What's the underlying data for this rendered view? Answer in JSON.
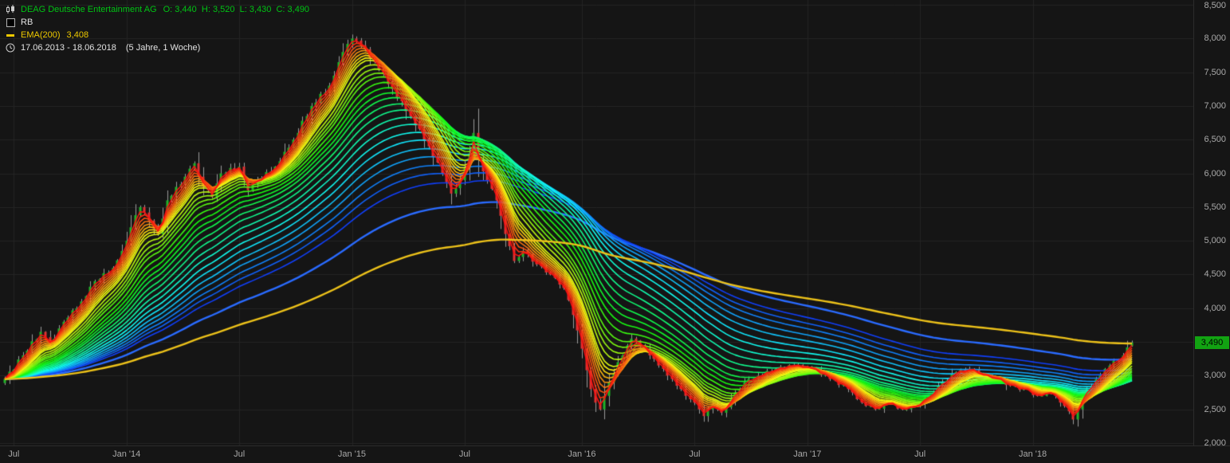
{
  "header": {
    "symbol_title": "DEAG Deutsche Entertainment AG",
    "ohlc_text": "O: 3,440  H: 3,520  L: 3,430  C: 3,490",
    "indicator_label": "RB",
    "ema_label": "EMA(200)",
    "ema_value": "3,408",
    "period_text": "17.06.2013 - 18.06.2018",
    "period_detail": "(5 Jahre, 1 Woche)"
  },
  "colors": {
    "background": "#151515",
    "grid": "#242424",
    "axis_text": "#a9a9a9",
    "title_green": "#00c414",
    "text_light": "#e2e2e2",
    "ema_yellow": "#eec900",
    "candle_up": "#21b32a",
    "candle_down": "#e03131",
    "wick": "#9a9a9a",
    "price_tag_bg": "#12a312",
    "price_tag_text": "#000000",
    "blue_line": "#2a6bff",
    "ema200_line": "#edc21a"
  },
  "chart_data": {
    "type": "candlestick",
    "title": "DEAG Deutsche Entertainment AG",
    "date_range": "17.06.2013 - 18.06.2018",
    "timeframe": "1 Woche",
    "current_price": 3490,
    "current_price_label": "3,490",
    "ema200_value": 3408,
    "y_range": [
      2000,
      8500
    ],
    "y_ticks": [
      {
        "value": 8500,
        "label": "8,500"
      },
      {
        "value": 8000,
        "label": "8,000"
      },
      {
        "value": 7500,
        "label": "7,500"
      },
      {
        "value": 7000,
        "label": "7,000"
      },
      {
        "value": 6500,
        "label": "6,500"
      },
      {
        "value": 6000,
        "label": "6,000"
      },
      {
        "value": 5500,
        "label": "5,500"
      },
      {
        "value": 5000,
        "label": "5,000"
      },
      {
        "value": 4500,
        "label": "4,500"
      },
      {
        "value": 4000,
        "label": "4,000"
      },
      {
        "value": 3500,
        "label": "3,500"
      },
      {
        "value": 3000,
        "label": "3,000"
      },
      {
        "value": 2500,
        "label": "2,500"
      },
      {
        "value": 2000,
        "label": "2,000"
      }
    ],
    "x_ticks": [
      {
        "label": "Jul",
        "week": 2
      },
      {
        "label": "Jan '14",
        "week": 27
      },
      {
        "label": "Jul",
        "week": 52
      },
      {
        "label": "Jan '15",
        "week": 77
      },
      {
        "label": "Jul",
        "week": 102
      },
      {
        "label": "Jan '16",
        "week": 128
      },
      {
        "label": "Jul",
        "week": 153
      },
      {
        "label": "Jan '17",
        "week": 178
      },
      {
        "label": "Jul",
        "week": 203
      },
      {
        "label": "Jan '18",
        "week": 228
      }
    ],
    "closes": [
      2950,
      3060,
      3090,
      3240,
      3300,
      3370,
      3510,
      3540,
      3650,
      3570,
      3450,
      3550,
      3700,
      3800,
      3860,
      3970,
      4000,
      4100,
      4180,
      4320,
      4400,
      4430,
      4520,
      4530,
      4600,
      4710,
      4850,
      5000,
      5200,
      5380,
      5500,
      5420,
      5300,
      5180,
      5100,
      5330,
      5600,
      5670,
      5800,
      5840,
      5950,
      6070,
      6150,
      5950,
      5800,
      5750,
      5650,
      5850,
      6000,
      6010,
      6080,
      6050,
      6100,
      5900,
      5750,
      5850,
      5900,
      5930,
      6020,
      6030,
      6100,
      6180,
      6320,
      6380,
      6500,
      6600,
      6780,
      6850,
      7000,
      7050,
      7180,
      7200,
      7300,
      7450,
      7650,
      7800,
      7920,
      8000,
      7970,
      7900,
      7840,
      7700,
      7650,
      7530,
      7470,
      7320,
      7250,
      7130,
      7070,
      6920,
      6850,
      6710,
      6660,
      6480,
      6400,
      6240,
      6160,
      6000,
      5870,
      5700,
      5780,
      5900,
      6080,
      6300,
      6600,
      6200,
      6030,
      5900,
      5770,
      5600,
      5370,
      5100,
      4920,
      4700,
      4760,
      4850,
      4800,
      4690,
      4650,
      4620,
      4530,
      4500,
      4450,
      4350,
      4300,
      4120,
      3900,
      3670,
      3400,
      3080,
      2800,
      2600,
      2500,
      2700,
      2900,
      3030,
      3200,
      3300,
      3450,
      3550,
      3520,
      3450,
      3400,
      3300,
      3250,
      3150,
      3100,
      3000,
      2950,
      2850,
      2800,
      2700,
      2650,
      2600,
      2500,
      2400,
      2500,
      2570,
      2500,
      2450,
      2530,
      2650,
      2750,
      2800,
      2900,
      2950,
      2950,
      3000,
      3010,
      3070,
      3060,
      3100,
      3130,
      3110,
      3160,
      3150,
      3160,
      3110,
      3130,
      3100,
      3080,
      3010,
      3010,
      2950,
      2930,
      2860,
      2860,
      2800,
      2750,
      2650,
      2600,
      2550,
      2550,
      2500,
      2510,
      2590,
      2600,
      2590,
      2510,
      2500,
      2500,
      2550,
      2550,
      2580,
      2670,
      2700,
      2750,
      2850,
      2900,
      2930,
      3020,
      3050,
      3090,
      3060,
      3100,
      3090,
      3010,
      3000,
      3000,
      2950,
      2950,
      2940,
      2860,
      2850,
      2850,
      2790,
      2800,
      2790,
      2710,
      2700,
      2700,
      2750,
      2750,
      2700,
      2600,
      2550,
      2470,
      2350,
      2500,
      2700,
      2800,
      2850,
      2950,
      3000,
      3100,
      3150,
      3220,
      3240,
      3300,
      3420,
      3490
    ],
    "last_candle": {
      "open": 3440,
      "high": 3520,
      "low": 3430,
      "close": 3490
    },
    "overlays": {
      "rainbow_indicator": "RB",
      "rainbow_periods": [
        2,
        3,
        4,
        5,
        6,
        7,
        8,
        9,
        10,
        12,
        14,
        16,
        18,
        21,
        24,
        27,
        30,
        34,
        38,
        43,
        48,
        54,
        60,
        67,
        74,
        82,
        90,
        100
      ],
      "rainbow_hue_range": [
        0,
        228
      ],
      "blue_ema_period": 130,
      "ema200_period": 200
    }
  }
}
